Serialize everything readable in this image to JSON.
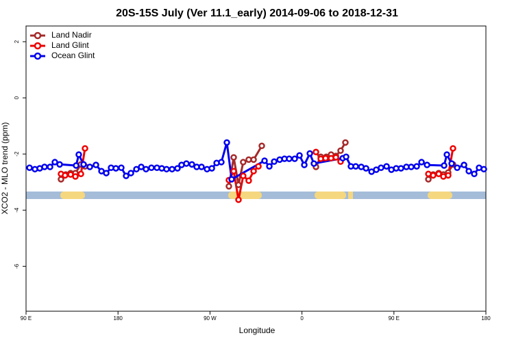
{
  "chart_data": {
    "type": "line",
    "title": "20S-15S July (Ver 11.1_early)   2014-09-06 to 2018-12-31",
    "x_label": "Longitude",
    "y_label": "XCO2 - MLO trend (ppm)",
    "xlim": [
      90,
      540
    ],
    "ylim": [
      -7.6,
      2.56
    ],
    "xticks": [
      {
        "value": 90,
        "label": "90 E"
      },
      180,
      {
        "value": 270,
        "label": "90 W"
      },
      {
        "value": 360,
        "label": "0"
      },
      {
        "value": 450,
        "label": "90 E"
      },
      {
        "value": 540,
        "label": "180"
      }
    ],
    "yticks": [
      2,
      0,
      -2,
      -4,
      -6
    ],
    "legend": "top-left",
    "series": [
      {
        "name": "Land Nadir",
        "color": "#a52a2a",
        "x": [
          124.2,
          128.9,
          133.6,
          138.3,
          143.7,
          147.7,
          null,
          288.5,
          293.2,
          297.9,
          302.5,
          307.9,
          312.7,
          320.7,
          null,
          373.7,
          378.4,
          383.8,
          388.5,
          393.2,
          397.8,
          402.5,
          null,
          483.7,
          488.4,
          493.8,
          498.4,
          503.1,
          507.8
        ],
        "values": [
          -2.9,
          -2.73,
          -2.68,
          -2.68,
          -2.37,
          -2.44,
          null,
          -3.15,
          -2.12,
          -3.1,
          -2.29,
          -2.2,
          -2.2,
          -1.71,
          null,
          -2.46,
          -2.1,
          -2.1,
          -2.02,
          -2.07,
          -1.88,
          -1.59,
          null,
          -2.9,
          -2.73,
          -2.68,
          -2.73,
          -2.66,
          -2.37
        ]
      },
      {
        "name": "Land Glint",
        "color": "#ee0000",
        "x": [
          124.2,
          128.2,
          133.6,
          138.3,
          143.7,
          147.7,
          null,
          288.5,
          293.2,
          297.9,
          302.5,
          307.9,
          312.7,
          317.4,
          null,
          373.7,
          378.4,
          383.1,
          388.5,
          393.2,
          397.8,
          null,
          483.7,
          488.4,
          493.8,
          498.4,
          503.1,
          507.8
        ],
        "values": [
          -2.71,
          -2.76,
          -2.73,
          -2.8,
          -2.71,
          -1.8,
          null,
          -2.93,
          -2.61,
          -3.63,
          -2.78,
          -2.95,
          -2.61,
          -2.44,
          null,
          -1.93,
          -2.17,
          -2.15,
          -2.15,
          -2.12,
          -2.27,
          null,
          -2.71,
          -2.76,
          -2.71,
          -2.8,
          -2.76,
          -1.8
        ]
      },
      {
        "name": "Ocean Glint",
        "color": "#0000ee",
        "x": [
          93.4,
          98.7,
          103.4,
          108.1,
          113.5,
          118.2,
          122.9,
          139,
          141.6,
          146.3,
          152.4,
          158.4,
          163.8,
          168.5,
          173.2,
          177.9,
          183.2,
          187.9,
          192.6,
          198,
          202.7,
          207.4,
          212.7,
          218.1,
          222.8,
          227.5,
          232.9,
          238.2,
          242.2,
          246.9,
          252.3,
          257,
          261.7,
          267.1,
          271.8,
          276.5,
          281.1,
          286.5,
          291.2,
          323.4,
          328.1,
          332.8,
          338.2,
          342.9,
          347.5,
          352.9,
          357.6,
          362.3,
          367.7,
          371.7,
          399.9,
          403.2,
          407.9,
          412.6,
          418,
          422.7,
          428.1,
          432.7,
          437.4,
          442.8,
          447.5,
          452.2,
          456.9,
          462.2,
          466.9,
          472.3,
          477,
          482.4,
          499.1,
          501.8,
          506.5,
          511.9,
          518.6,
          523.3,
          528.6,
          533.3,
          538
        ],
        "values": [
          -2.49,
          -2.54,
          -2.51,
          -2.46,
          -2.46,
          -2.29,
          -2.37,
          -2.41,
          -2.02,
          -2.37,
          -2.46,
          -2.39,
          -2.61,
          -2.68,
          -2.49,
          -2.51,
          -2.49,
          -2.78,
          -2.68,
          -2.54,
          -2.46,
          -2.54,
          -2.49,
          -2.49,
          -2.51,
          -2.54,
          -2.54,
          -2.51,
          -2.39,
          -2.34,
          -2.37,
          -2.46,
          -2.46,
          -2.54,
          -2.51,
          -2.32,
          -2.29,
          -1.59,
          -2.9,
          -2.24,
          -2.44,
          -2.27,
          -2.2,
          -2.17,
          -2.17,
          -2.17,
          -2.05,
          -2.39,
          -1.98,
          -2.34,
          -2.15,
          -2.1,
          -2.44,
          -2.44,
          -2.46,
          -2.51,
          -2.63,
          -2.56,
          -2.49,
          -2.44,
          -2.56,
          -2.51,
          -2.51,
          -2.46,
          -2.46,
          -2.44,
          -2.29,
          -2.39,
          -2.41,
          -2.02,
          -2.34,
          -2.49,
          -2.39,
          -2.61,
          -2.71,
          -2.49,
          -2.54
        ]
      }
    ]
  }
}
